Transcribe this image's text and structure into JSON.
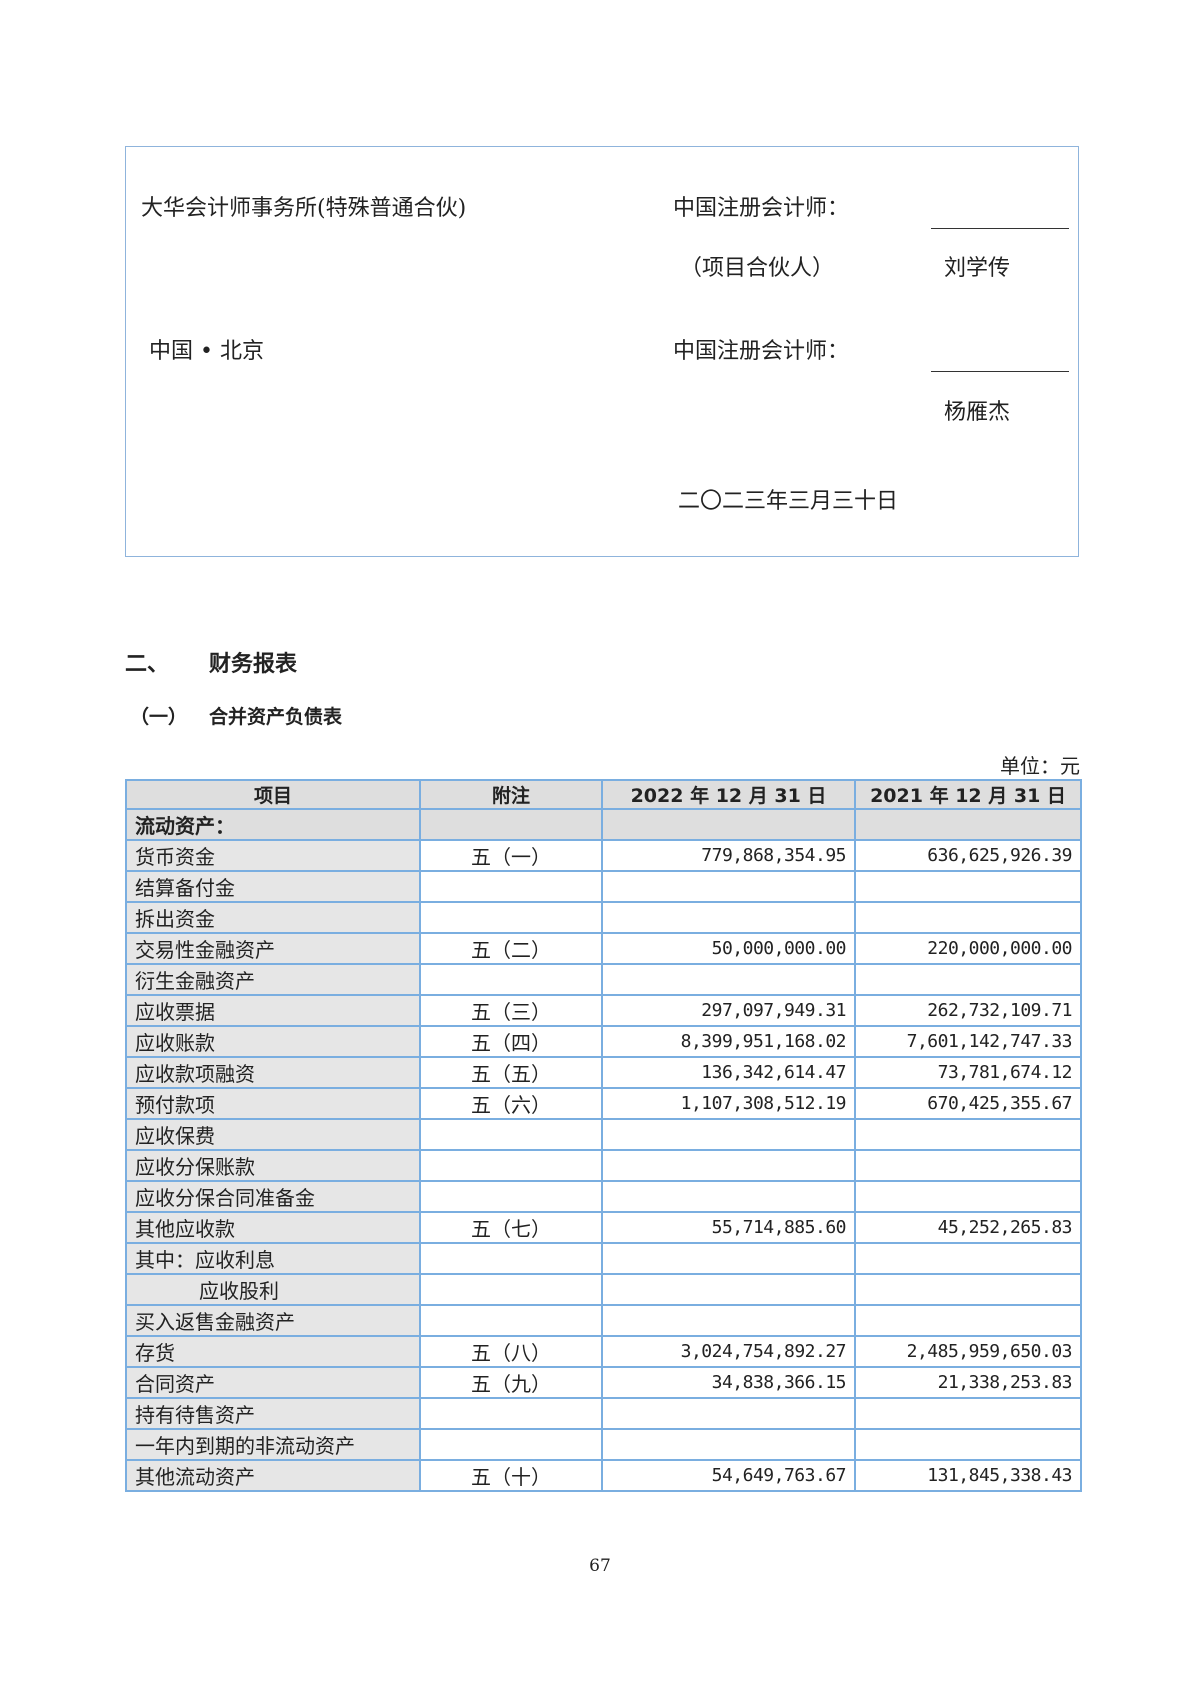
{
  "signature": {
    "firm": "大华会计师事务所(特殊普通合伙)",
    "cpa_label_1": "中国注册会计师：",
    "partner_label": "（项目合伙人）",
    "cpa_name_1": "刘学传",
    "location": "中国 • 北京",
    "cpa_label_2": "中国注册会计师：",
    "cpa_name_2": "杨雁杰",
    "date": "二〇二三年三月三十日"
  },
  "section": {
    "number": "二、",
    "title": "财务报表"
  },
  "subsection": {
    "number": "（一）",
    "title": "合并资产负债表"
  },
  "unit": "单位：元",
  "table": {
    "headers": [
      "项目",
      "附注",
      "2022 年 12 月 31 日",
      "2021 年 12 月 31 日"
    ],
    "section_row": "流动资产：",
    "rows": [
      {
        "item": "货币资金",
        "note": "五（一）",
        "y2022": "779,868,354.95",
        "y2021": "636,625,926.39"
      },
      {
        "item": "结算备付金",
        "note": "",
        "y2022": "",
        "y2021": ""
      },
      {
        "item": "拆出资金",
        "note": "",
        "y2022": "",
        "y2021": ""
      },
      {
        "item": "交易性金融资产",
        "note": "五（二）",
        "y2022": "50,000,000.00",
        "y2021": "220,000,000.00"
      },
      {
        "item": "衍生金融资产",
        "note": "",
        "y2022": "",
        "y2021": ""
      },
      {
        "item": "应收票据",
        "note": "五（三）",
        "y2022": "297,097,949.31",
        "y2021": "262,732,109.71"
      },
      {
        "item": "应收账款",
        "note": "五（四）",
        "y2022": "8,399,951,168.02",
        "y2021": "7,601,142,747.33"
      },
      {
        "item": "应收款项融资",
        "note": "五（五）",
        "y2022": "136,342,614.47",
        "y2021": "73,781,674.12"
      },
      {
        "item": "预付款项",
        "note": "五（六）",
        "y2022": "1,107,308,512.19",
        "y2021": "670,425,355.67"
      },
      {
        "item": "应收保费",
        "note": "",
        "y2022": "",
        "y2021": ""
      },
      {
        "item": "应收分保账款",
        "note": "",
        "y2022": "",
        "y2021": ""
      },
      {
        "item": "应收分保合同准备金",
        "note": "",
        "y2022": "",
        "y2021": ""
      },
      {
        "item": "其他应收款",
        "note": "五（七）",
        "y2022": "55,714,885.60",
        "y2021": "45,252,265.83"
      },
      {
        "item": "其中：应收利息",
        "note": "",
        "y2022": "",
        "y2021": ""
      },
      {
        "item": "应收股利",
        "note": "",
        "y2022": "",
        "y2021": ""
      },
      {
        "item": "买入返售金融资产",
        "note": "",
        "y2022": "",
        "y2021": ""
      },
      {
        "item": "存货",
        "note": "五（八）",
        "y2022": "3,024,754,892.27",
        "y2021": "2,485,959,650.03"
      },
      {
        "item": "合同资产",
        "note": "五（九）",
        "y2022": "34,838,366.15",
        "y2021": "21,338,253.83"
      },
      {
        "item": "持有待售资产",
        "note": "",
        "y2022": "",
        "y2021": ""
      },
      {
        "item": "一年内到期的非流动资产",
        "note": "",
        "y2022": "",
        "y2021": ""
      },
      {
        "item": "其他流动资产",
        "note": "五（十）",
        "y2022": "54,649,763.67",
        "y2021": "131,845,338.43"
      }
    ]
  },
  "page_number": "67"
}
